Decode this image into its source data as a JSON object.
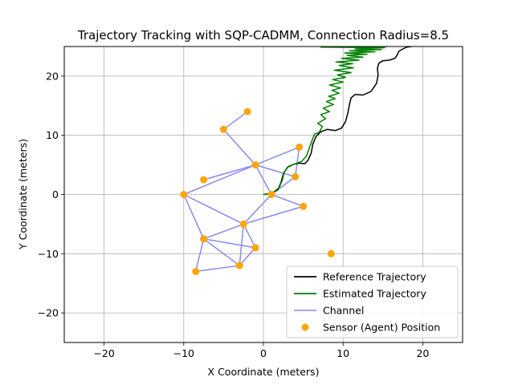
{
  "chart_data": {
    "type": "line",
    "title": "Trajectory Tracking with SQP-CADMM, Connection Radius=8.5",
    "xlabel": "X Coordinate (meters)",
    "ylabel": "Y Coordinate (meters)",
    "xlim": [
      -25,
      25
    ],
    "ylim": [
      -25,
      25
    ],
    "xticks": [
      -20,
      -10,
      0,
      10,
      20
    ],
    "yticks": [
      -20,
      -10,
      0,
      10,
      20
    ],
    "xtick_labels": [
      "−20",
      "−10",
      "0",
      "10",
      "20"
    ],
    "ytick_labels": [
      "−20",
      "−10",
      "0",
      "10",
      "20"
    ],
    "grid": true,
    "legend_position": "bottom-right",
    "legend": [
      {
        "label": "Reference Trajectory",
        "color": "#000000",
        "kind": "line"
      },
      {
        "label": "Estimated Trajectory",
        "color": "#008000",
        "kind": "line"
      },
      {
        "label": "Channel",
        "color": "#9999ee",
        "kind": "line"
      },
      {
        "label": "Sensor (Agent) Position",
        "color": "#ffa500",
        "kind": "marker"
      }
    ],
    "sensors": [
      {
        "id": 0,
        "x": -2.0,
        "y": 14.0
      },
      {
        "id": 1,
        "x": -5.0,
        "y": 11.0
      },
      {
        "id": 2,
        "x": 4.5,
        "y": 8.0
      },
      {
        "id": 3,
        "x": -1.0,
        "y": 5.0
      },
      {
        "id": 4,
        "x": -7.5,
        "y": 2.5
      },
      {
        "id": 5,
        "x": 4.0,
        "y": 3.0
      },
      {
        "id": 6,
        "x": -10.0,
        "y": 0.0
      },
      {
        "id": 7,
        "x": 1.0,
        "y": 0.0
      },
      {
        "id": 8,
        "x": 5.0,
        "y": -2.0
      },
      {
        "id": 9,
        "x": -2.5,
        "y": -5.0
      },
      {
        "id": 10,
        "x": -7.5,
        "y": -7.5
      },
      {
        "id": 11,
        "x": -1.0,
        "y": -9.0
      },
      {
        "id": 12,
        "x": -3.0,
        "y": -12.0
      },
      {
        "id": 13,
        "x": -8.5,
        "y": -13.0
      },
      {
        "id": 14,
        "x": 8.5,
        "y": -10.0
      }
    ],
    "channels": [
      [
        0,
        1
      ],
      [
        1,
        3
      ],
      [
        3,
        2
      ],
      [
        2,
        5
      ],
      [
        3,
        4
      ],
      [
        3,
        6
      ],
      [
        3,
        7
      ],
      [
        3,
        5
      ],
      [
        5,
        7
      ],
      [
        7,
        8
      ],
      [
        6,
        9
      ],
      [
        7,
        9
      ],
      [
        8,
        9
      ],
      [
        9,
        10
      ],
      [
        9,
        11
      ],
      [
        9,
        12
      ],
      [
        10,
        11
      ],
      [
        10,
        12
      ],
      [
        10,
        13
      ],
      [
        12,
        13
      ],
      [
        11,
        12
      ],
      [
        6,
        10
      ]
    ],
    "reference_trajectory": {
      "x": [
        0,
        1.0,
        1.8,
        2.2,
        2.5,
        3.0,
        3.8,
        4.5,
        5.2,
        5.6,
        6.0,
        6.2,
        6.6,
        7.2,
        8.0,
        9.0,
        9.8,
        10.3,
        10.6,
        10.8,
        11.0,
        11.5,
        12.5,
        13.5,
        14.2,
        14.4,
        14.3,
        14.5,
        15.0,
        15.8,
        16.5,
        16.8,
        17.0,
        17.5,
        18.0,
        18.6
      ],
      "y": [
        0,
        0.2,
        0.8,
        2.0,
        3.5,
        4.6,
        5.1,
        5.3,
        5.2,
        5.8,
        7.0,
        8.5,
        9.8,
        10.6,
        11.0,
        10.8,
        11.2,
        12.3,
        13.8,
        15.2,
        16.3,
        16.9,
        16.8,
        17.4,
        18.8,
        20.2,
        21.3,
        22.2,
        22.6,
        22.7,
        23.0,
        23.6,
        24.2,
        24.6,
        24.9,
        25.0
      ]
    },
    "estimated_trajectory": {
      "x": [
        0,
        1.2,
        2.0,
        2.4,
        2.6,
        3.2,
        4.2,
        4.8,
        5.4,
        5.8,
        6.4,
        7.0,
        7.4,
        6.8,
        7.8,
        7.2,
        8.3,
        7.5,
        8.8,
        7.9,
        9.0,
        8.2,
        9.5,
        8.6,
        9.7,
        8.3,
        10.0,
        8.7,
        10.3,
        9.3,
        11.0,
        8.9,
        11.3,
        9.5,
        11.2,
        9.1,
        12.0,
        9.8,
        12.5,
        10.5,
        13.0,
        10.2,
        14.0,
        10.8,
        14.8,
        11.5,
        15.2,
        7.2,
        15.6
      ],
      "y": [
        0,
        0.3,
        1.2,
        2.5,
        3.8,
        4.8,
        5.3,
        5.6,
        6.5,
        8.0,
        10.2,
        10.5,
        11.5,
        12.0,
        12.8,
        13.5,
        14.0,
        14.6,
        15.2,
        15.7,
        16.2,
        16.6,
        17.1,
        17.6,
        18.0,
        18.5,
        19.0,
        19.4,
        19.8,
        20.2,
        20.6,
        21.0,
        21.4,
        21.8,
        22.1,
        22.4,
        22.7,
        23.0,
        23.2,
        23.5,
        23.7,
        23.9,
        24.1,
        24.3,
        24.5,
        24.6,
        24.8,
        24.9,
        25.0
      ]
    }
  }
}
